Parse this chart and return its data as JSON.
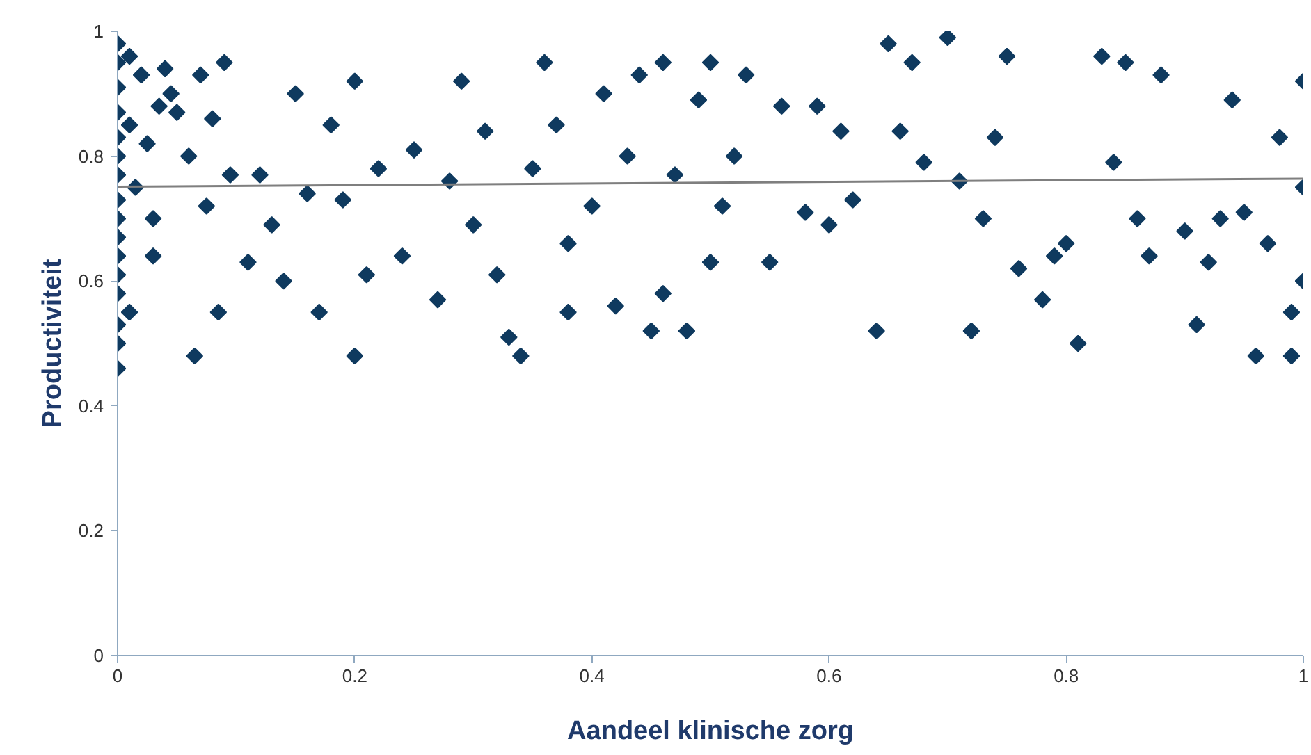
{
  "chart_data": {
    "type": "scatter",
    "xlabel": "Aandeel klinische zorg",
    "ylabel": "Productiviteit",
    "xlim": [
      0,
      1
    ],
    "ylim": [
      0,
      1
    ],
    "xticks": [
      0,
      0.2,
      0.4,
      0.6,
      0.8,
      1
    ],
    "yticks": [
      0,
      0.2,
      0.4,
      0.6,
      0.8,
      1
    ],
    "marker": "diamond",
    "series": [
      {
        "color": "#0f3a5f",
        "x": [
          0,
          0,
          0,
          0,
          0,
          0,
          0,
          0,
          0,
          0,
          0,
          0,
          0,
          0,
          0,
          0,
          0.01,
          0.01,
          0.01,
          0.015,
          0.02,
          0.025,
          0.03,
          0.03,
          0.035,
          0.04,
          0.045,
          0.05,
          0.06,
          0.065,
          0.07,
          0.075,
          0.08,
          0.085,
          0.09,
          0.095,
          0.11,
          0.12,
          0.13,
          0.14,
          0.15,
          0.16,
          0.17,
          0.18,
          0.19,
          0.2,
          0.2,
          0.21,
          0.22,
          0.24,
          0.25,
          0.27,
          0.28,
          0.29,
          0.3,
          0.31,
          0.32,
          0.33,
          0.34,
          0.35,
          0.36,
          0.37,
          0.38,
          0.38,
          0.4,
          0.41,
          0.42,
          0.43,
          0.44,
          0.45,
          0.46,
          0.46,
          0.47,
          0.48,
          0.49,
          0.5,
          0.5,
          0.51,
          0.52,
          0.53,
          0.55,
          0.56,
          0.58,
          0.59,
          0.6,
          0.61,
          0.62,
          0.64,
          0.65,
          0.66,
          0.67,
          0.68,
          0.7,
          0.71,
          0.72,
          0.73,
          0.74,
          0.75,
          0.76,
          0.78,
          0.79,
          0.8,
          0.81,
          0.83,
          0.84,
          0.85,
          0.86,
          0.87,
          0.88,
          0.9,
          0.91,
          0.92,
          0.93,
          0.94,
          0.95,
          0.96,
          0.97,
          0.98,
          0.99,
          1,
          1,
          1,
          0.99
        ],
        "values": [
          0.98,
          0.95,
          0.91,
          0.87,
          0.83,
          0.8,
          0.77,
          0.73,
          0.7,
          0.67,
          0.64,
          0.61,
          0.58,
          0.53,
          0.5,
          0.46,
          0.96,
          0.85,
          0.55,
          0.75,
          0.93,
          0.82,
          0.7,
          0.64,
          0.88,
          0.94,
          0.9,
          0.87,
          0.8,
          0.48,
          0.93,
          0.72,
          0.86,
          0.55,
          0.95,
          0.77,
          0.63,
          0.77,
          0.69,
          0.6,
          0.9,
          0.74,
          0.55,
          0.85,
          0.73,
          0.48,
          0.92,
          0.61,
          0.78,
          0.64,
          0.81,
          0.57,
          0.76,
          0.92,
          0.69,
          0.84,
          0.61,
          0.51,
          0.48,
          0.78,
          0.95,
          0.85,
          0.66,
          0.55,
          0.72,
          0.9,
          0.56,
          0.8,
          0.93,
          0.52,
          0.58,
          0.95,
          0.77,
          0.52,
          0.89,
          0.95,
          0.63,
          0.72,
          0.8,
          0.93,
          0.63,
          0.88,
          0.71,
          0.88,
          0.69,
          0.84,
          0.73,
          0.52,
          0.98,
          0.84,
          0.95,
          0.79,
          0.99,
          0.76,
          0.52,
          0.7,
          0.83,
          0.96,
          0.62,
          0.57,
          0.64,
          0.66,
          0.5,
          0.96,
          0.79,
          0.95,
          0.7,
          0.64,
          0.93,
          0.68,
          0.53,
          0.63,
          0.7,
          0.89,
          0.71,
          0.48,
          0.66,
          0.83,
          0.55,
          0.92,
          0.75,
          0.6,
          0.48
        ]
      },
      {
        "type": "line",
        "color": "#7f7f7f",
        "marker": "none",
        "x": [
          0,
          1
        ],
        "values": [
          0.751,
          0.764
        ]
      }
    ]
  }
}
